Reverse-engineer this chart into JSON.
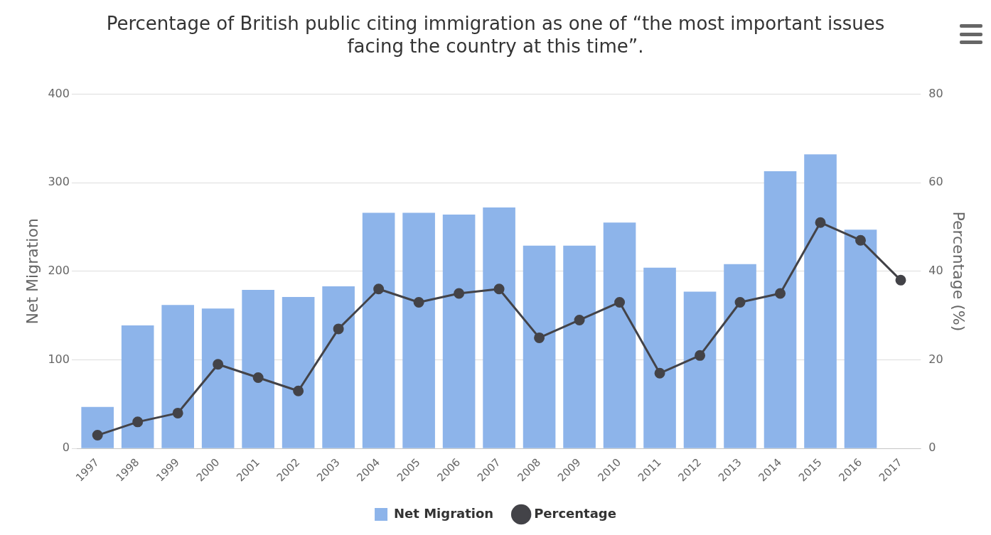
{
  "chart_data": {
    "type": "bar",
    "title": "Percentage of British public citing immigration as one of “the most important issues facing the country at this time”.",
    "ylabel": "Net Migration",
    "y2label": "Percentage (%)",
    "categories": [
      "1997",
      "1998",
      "1999",
      "2000",
      "2001",
      "2002",
      "2003",
      "2004",
      "2005",
      "2006",
      "2007",
      "2008",
      "2009",
      "2010",
      "2011",
      "2012",
      "2013",
      "2014",
      "2015",
      "2016",
      "2017"
    ],
    "series": [
      {
        "name": "Net Migration",
        "color": "#8db4ea",
        "values": [
          47,
          139,
          162,
          158,
          179,
          171,
          183,
          266,
          266,
          264,
          272,
          229,
          229,
          255,
          204,
          177,
          208,
          313,
          332,
          247,
          null
        ]
      },
      {
        "name": "Percentage",
        "type": "line",
        "axis": "y2",
        "color": "#434348",
        "values": [
          3,
          6,
          8,
          19,
          16,
          13,
          27,
          36,
          33,
          35,
          36,
          25,
          29,
          33,
          17,
          21,
          33,
          35,
          51,
          47,
          38
        ]
      }
    ],
    "ylim": [
      0,
      400
    ],
    "yticks": [
      0,
      100,
      200,
      300,
      400
    ],
    "y2lim": [
      0,
      80
    ],
    "y2ticks": [
      0,
      20,
      40,
      60,
      80
    ],
    "grid": "y",
    "legend": "bottom",
    "marker": "circle"
  }
}
